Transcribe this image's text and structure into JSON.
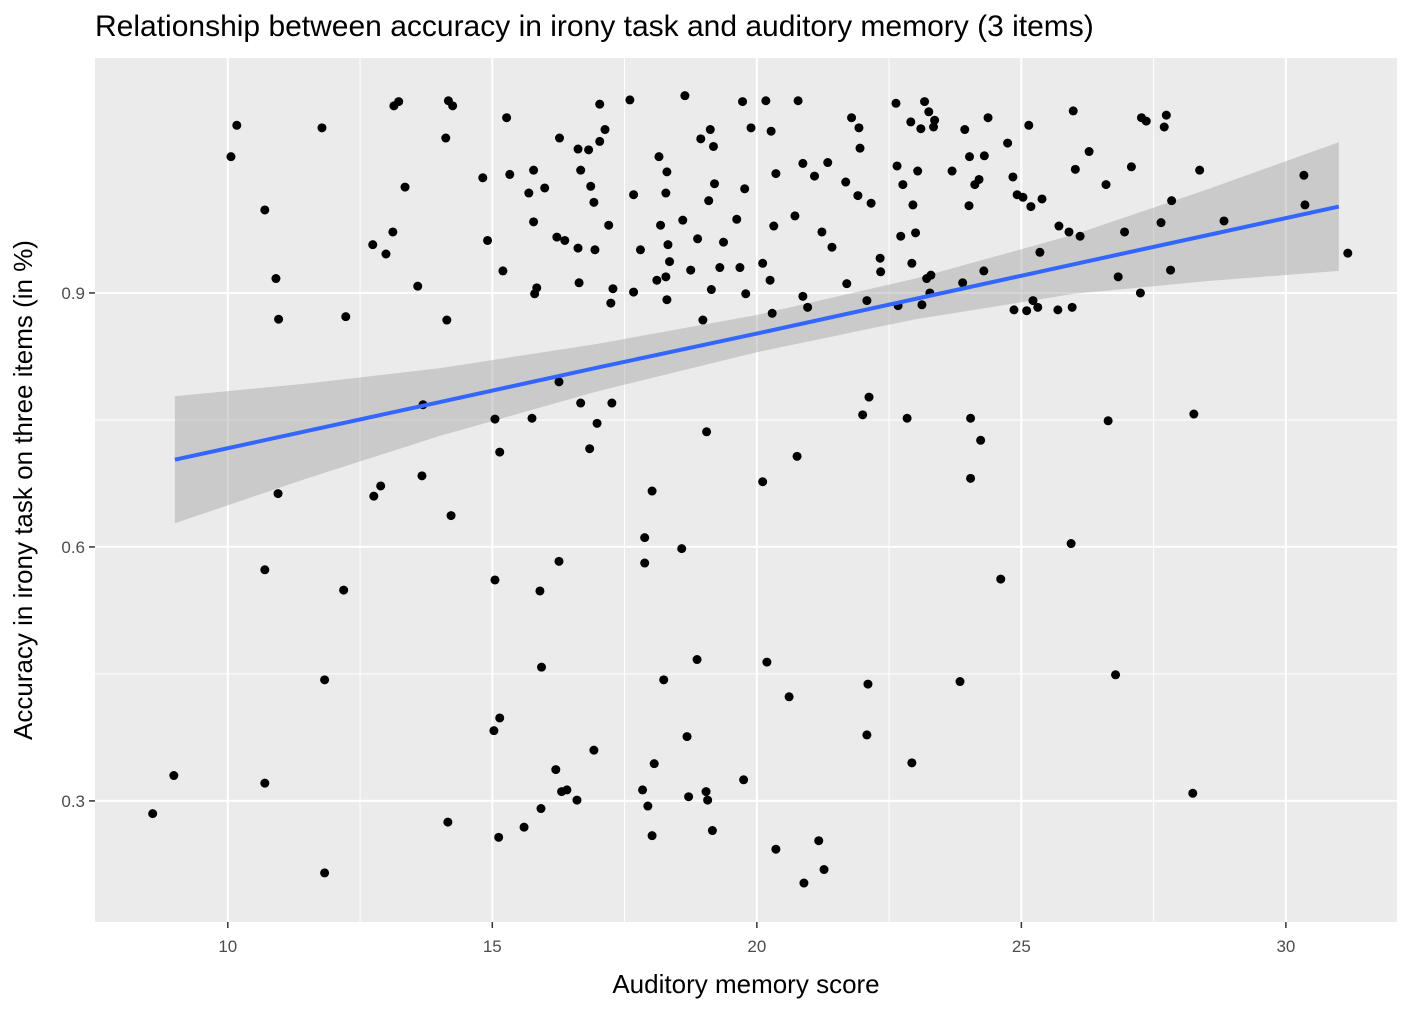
{
  "chart_data": {
    "type": "scatter",
    "title": "Relationship between accuracy in irony task and auditory memory (3 items)",
    "x_label": "Auditory memory score",
    "y_label": "Accuracy in irony task on three items (in %)",
    "xlim": [
      7.49,
      32.1
    ],
    "ylim": [
      0.157,
      1.1775
    ],
    "xticks": [
      10,
      15,
      20,
      25,
      30
    ],
    "yticks": [
      0.3,
      0.6,
      0.9
    ],
    "grid": true,
    "background": "#ebebeb",
    "points": {
      "color": "#000000",
      "x": [
        8.58,
        8.98,
        10.06,
        10.17,
        10.7,
        10.7,
        10.7,
        10.91,
        10.96,
        10.95,
        11.78,
        11.83,
        11.83,
        12.19,
        12.23,
        12.74,
        12.76,
        12.89,
        12.99,
        13.12,
        13.14,
        13.23,
        13.35,
        13.59,
        13.67,
        13.69,
        14.12,
        14.14,
        14.16,
        14.17,
        14.25,
        14.22,
        14.82,
        14.91,
        15.05,
        15.05,
        15.03,
        15.14,
        15.14,
        15.12,
        15.2,
        15.27,
        15.33,
        15.6,
        15.69,
        15.75,
        15.78,
        15.78,
        15.8,
        15.84,
        15.9,
        15.92,
        15.93,
        15.99,
        16.2,
        16.22,
        16.26,
        16.26,
        16.27,
        16.31,
        16.37,
        16.41,
        16.6,
        16.62,
        16.62,
        16.64,
        16.67,
        16.67,
        16.82,
        16.84,
        16.86,
        16.92,
        16.94,
        16.92,
        16.98,
        17.03,
        17.03,
        17.13,
        17.2,
        17.24,
        17.26,
        17.28,
        17.6,
        17.67,
        17.67,
        17.8,
        17.84,
        17.88,
        17.88,
        17.94,
        18.02,
        18.02,
        18.06,
        18.11,
        18.15,
        18.18,
        18.24,
        18.28,
        18.28,
        18.3,
        18.3,
        18.32,
        18.35,
        18.58,
        18.6,
        18.64,
        18.68,
        18.71,
        18.75,
        18.87,
        18.88,
        18.94,
        18.98,
        19.04,
        19.05,
        19.07,
        19.09,
        19.12,
        19.14,
        19.16,
        19.18,
        19.2,
        19.3,
        19.37,
        19.62,
        19.68,
        19.73,
        19.75,
        19.77,
        19.79,
        19.89,
        20.11,
        20.11,
        20.17,
        20.19,
        20.25,
        20.27,
        20.29,
        20.32,
        20.36,
        20.36,
        20.61,
        20.72,
        20.76,
        20.78,
        20.87,
        20.87,
        20.89,
        20.96,
        21.09,
        21.17,
        21.23,
        21.27,
        21.34,
        21.42,
        21.68,
        21.7,
        21.79,
        21.91,
        21.93,
        21.95,
        22.0,
        22.08,
        22.1,
        22.08,
        22.12,
        22.16,
        22.34,
        22.33,
        22.63,
        22.65,
        22.67,
        22.72,
        22.76,
        22.84,
        22.91,
        22.93,
        22.93,
        22.95,
        23.0,
        23.04,
        23.1,
        23.12,
        23.17,
        23.21,
        23.25,
        23.27,
        23.29,
        23.34,
        23.36,
        23.69,
        23.84,
        23.89,
        23.93,
        24.01,
        24.02,
        24.04,
        24.04,
        24.12,
        24.2,
        24.23,
        24.29,
        24.3,
        24.37,
        24.61,
        24.74,
        24.84,
        24.92,
        24.86,
        25.03,
        25.1,
        25.14,
        25.18,
        25.22,
        25.31,
        25.35,
        25.39,
        25.69,
        25.71,
        25.9,
        25.94,
        25.96,
        25.98,
        26.02,
        26.11,
        26.28,
        26.6,
        26.64,
        26.78,
        26.83,
        26.95,
        27.08,
        27.25,
        27.27,
        27.36,
        27.64,
        27.7,
        27.74,
        27.82,
        27.84,
        28.24,
        28.26,
        28.37,
        28.83,
        30.34,
        30.36,
        31.17
      ],
      "y": [
        0.285,
        0.33,
        1.061,
        1.098,
        0.998,
        0.573,
        0.321,
        0.917,
        0.869,
        0.663,
        1.095,
        0.443,
        0.215,
        0.549,
        0.872,
        0.957,
        0.66,
        0.672,
        0.946,
        0.972,
        1.121,
        1.126,
        1.025,
        0.908,
        0.684,
        0.768,
        1.083,
        0.868,
        0.275,
        1.127,
        1.121,
        0.637,
        1.036,
        0.962,
        0.561,
        0.751,
        0.383,
        0.398,
        0.712,
        0.257,
        0.926,
        1.107,
        1.04,
        0.269,
        1.018,
        0.752,
        0.984,
        1.045,
        0.899,
        0.906,
        0.548,
        0.291,
        0.458,
        1.024,
        0.337,
        0.966,
        0.583,
        0.795,
        1.083,
        0.311,
        0.962,
        0.313,
        0.301,
        1.07,
        0.953,
        0.912,
        1.045,
        0.77,
        1.069,
        0.716,
        1.026,
        1.007,
        0.951,
        0.36,
        0.746,
        1.079,
        1.123,
        1.093,
        0.98,
        0.888,
        0.77,
        0.905,
        1.128,
        1.016,
        0.901,
        0.951,
        0.313,
        0.611,
        0.581,
        0.294,
        0.259,
        0.666,
        0.344,
        0.915,
        1.061,
        0.98,
        0.443,
        0.919,
        1.018,
        1.043,
        0.892,
        0.957,
        0.937,
        0.598,
        0.986,
        1.133,
        0.376,
        0.305,
        0.927,
        0.467,
        0.964,
        1.082,
        0.868,
        0.311,
        0.736,
        0.301,
        1.009,
        1.093,
        0.904,
        0.265,
        1.073,
        1.029,
        0.93,
        0.96,
        0.987,
        0.93,
        1.126,
        0.325,
        1.023,
        0.899,
        1.095,
        0.935,
        0.677,
        1.127,
        0.464,
        0.915,
        1.091,
        0.876,
        0.979,
        0.243,
        1.041,
        0.423,
        0.991,
        0.707,
        1.127,
        1.053,
        0.896,
        0.203,
        0.883,
        1.038,
        0.253,
        0.972,
        0.219,
        1.054,
        0.954,
        1.031,
        0.911,
        1.107,
        1.015,
        1.095,
        1.071,
        0.756,
        0.891,
        0.438,
        0.378,
        0.777,
        1.006,
        0.925,
        0.941,
        1.124,
        1.05,
        0.885,
        0.967,
        1.028,
        0.752,
        1.102,
        0.935,
        0.345,
        1.004,
        0.971,
        1.044,
        1.094,
        0.886,
        1.126,
        0.917,
        1.114,
        0.9,
        0.921,
        1.096,
        1.104,
        1.044,
        0.441,
        0.912,
        1.093,
        1.003,
        1.061,
        0.681,
        0.752,
        1.028,
        1.034,
        0.726,
        0.926,
        1.062,
        1.107,
        0.562,
        1.077,
        1.037,
        1.016,
        0.88,
        1.013,
        0.879,
        1.098,
        1.002,
        0.891,
        0.883,
        0.948,
        1.011,
        0.88,
        0.979,
        0.972,
        0.604,
        0.883,
        1.115,
        1.046,
        0.967,
        1.067,
        1.028,
        0.749,
        0.449,
        0.919,
        0.972,
        1.049,
        0.9,
        1.107,
        1.103,
        0.983,
        1.096,
        1.11,
        0.927,
        1.009,
        0.309,
        0.757,
        1.045,
        0.985,
        1.039,
        1.004,
        0.947
      ]
    },
    "fit": {
      "color": "#3366ff",
      "band_color": "#999999",
      "x": [
        9,
        11.5,
        14,
        17,
        20,
        23,
        26,
        28.5,
        31
      ],
      "y": [
        0.703,
        0.737,
        0.771,
        0.812,
        0.852,
        0.893,
        0.934,
        0.968,
        1.002
      ],
      "lower": [
        0.628,
        0.681,
        0.731,
        0.784,
        0.83,
        0.869,
        0.899,
        0.914,
        0.926
      ],
      "upper": [
        0.778,
        0.793,
        0.811,
        0.84,
        0.874,
        0.917,
        0.969,
        1.022,
        1.078
      ]
    }
  }
}
